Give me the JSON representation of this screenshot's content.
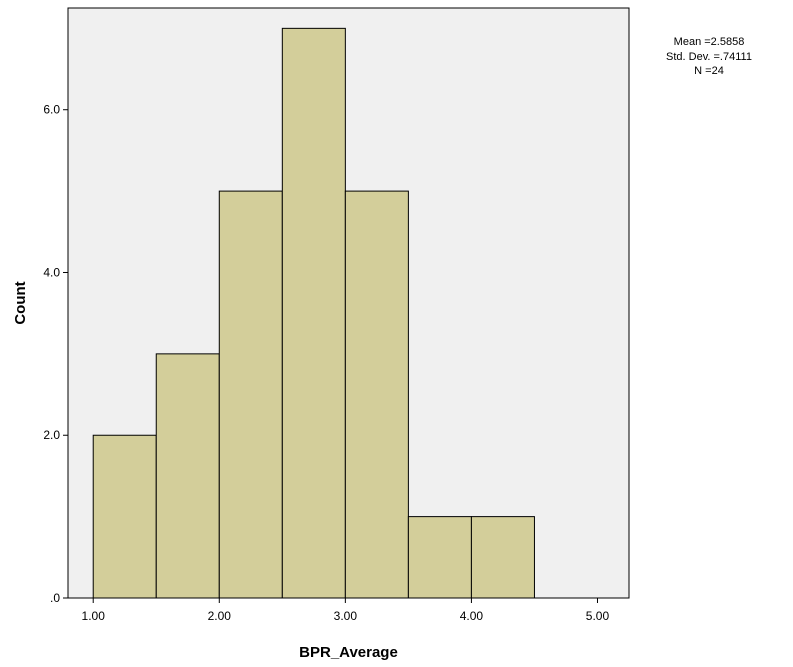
{
  "chart_data": {
    "type": "bar",
    "subtype": "histogram",
    "xlabel": "BPR_Average",
    "ylabel": "Count",
    "xlim": [
      0.8,
      5.25
    ],
    "ylim": [
      0,
      7.25
    ],
    "x_ticks": [
      1.0,
      2.0,
      3.0,
      4.0,
      5.0
    ],
    "x_tick_labels": [
      "1.00",
      "2.00",
      "3.00",
      "4.00",
      "5.00"
    ],
    "y_ticks": [
      0,
      2,
      4,
      6
    ],
    "y_tick_labels": [
      ".0",
      "2.0",
      "4.0",
      "6.0"
    ],
    "bins": [
      {
        "start": 1.0,
        "end": 1.5,
        "count": 2
      },
      {
        "start": 1.5,
        "end": 2.0,
        "count": 3
      },
      {
        "start": 2.0,
        "end": 2.5,
        "count": 5
      },
      {
        "start": 2.5,
        "end": 3.0,
        "count": 7
      },
      {
        "start": 3.0,
        "end": 3.5,
        "count": 5
      },
      {
        "start": 3.5,
        "end": 4.0,
        "count": 1
      },
      {
        "start": 4.0,
        "end": 4.5,
        "count": 1
      }
    ],
    "stats": {
      "mean_text": "Mean =2.5858",
      "std_text": "Std. Dev. =.74111",
      "n_text": "N =24"
    },
    "grid": false,
    "colors": {
      "plot_background": "#f0f0f0",
      "bar_fill": "#d3ce9a",
      "bar_stroke": "#000000"
    }
  }
}
